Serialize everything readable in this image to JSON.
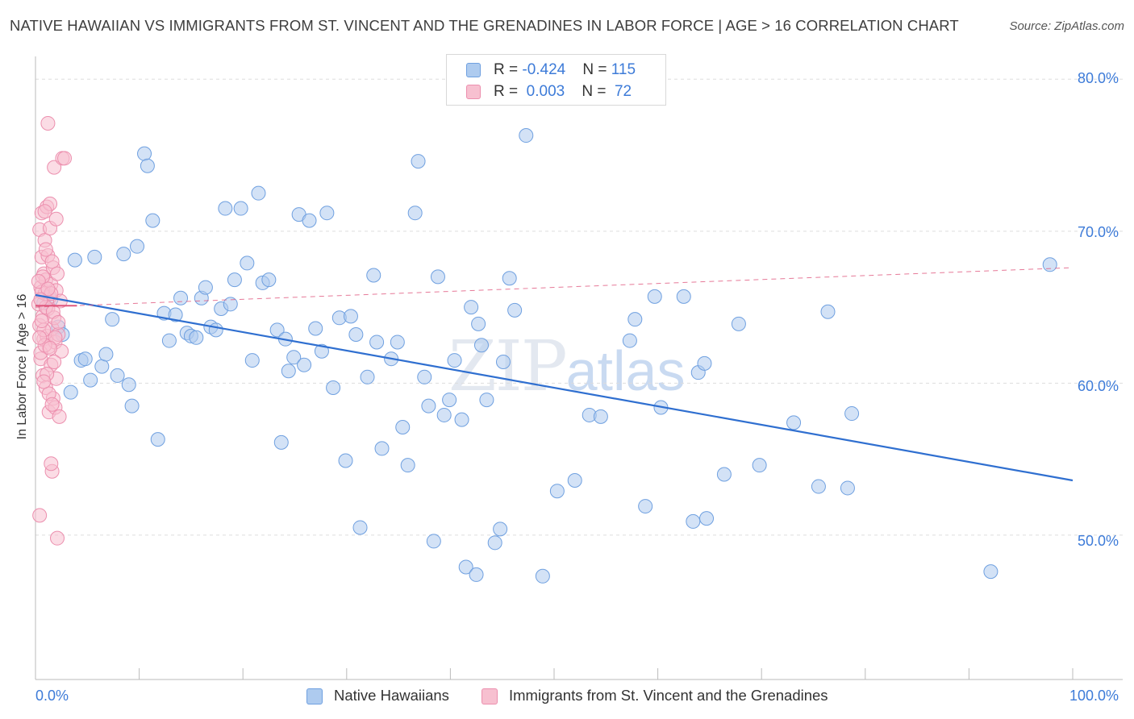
{
  "title": "NATIVE HAWAIIAN VS IMMIGRANTS FROM ST. VINCENT AND THE GRENADINES IN LABOR FORCE | AGE > 16 CORRELATION CHART",
  "source": "Source: ZipAtlas.com",
  "watermark": {
    "zip": "ZIP",
    "atlas": "atlas"
  },
  "legend_top": {
    "rows": [
      {
        "r_label": "R = ",
        "r_value": "-0.424",
        "n_label": "N = ",
        "n_value": "115"
      },
      {
        "r_label": "R = ",
        "r_value": " 0.003",
        "n_label": "N = ",
        "n_value": " 72"
      }
    ]
  },
  "colors": {
    "blue_fill": "#aecbef",
    "blue_stroke": "#6fa0e0",
    "blue_line": "#2f6fd0",
    "pink_fill": "#f7c0d0",
    "pink_stroke": "#ec8fae",
    "pink_line": "#e0587e",
    "grid": "#dddddd",
    "tick_text": "#3d7bd8"
  },
  "chart_data": {
    "type": "scatter",
    "title": "NATIVE HAWAIIAN VS IMMIGRANTS FROM ST. VINCENT AND THE GRENADINES IN LABOR FORCE | AGE > 16 CORRELATION CHART",
    "xlabel": "",
    "ylabel": "In Labor Force | Age > 16",
    "xlim": [
      0,
      100
    ],
    "ylim": [
      40.5,
      81.5
    ],
    "x_tick_labels": [
      "0.0%",
      "100.0%"
    ],
    "y_ticks": [
      50,
      60,
      70,
      80
    ],
    "y_tick_labels": [
      "50.0%",
      "60.0%",
      "70.0%",
      "80.0%"
    ],
    "grid": true,
    "legend_placement": "bottom",
    "series": [
      {
        "name": "Native Hawaiians",
        "r": -0.424,
        "n": 115,
        "trend": {
          "x": [
            0,
            100
          ],
          "y": [
            65.8,
            53.6
          ]
        },
        "points": [
          [
            0.8,
            65.3
          ],
          [
            1.5,
            65.5
          ],
          [
            2.2,
            63.7
          ],
          [
            2.6,
            63.2
          ],
          [
            3.4,
            59.4
          ],
          [
            3.8,
            68.1
          ],
          [
            4.4,
            61.5
          ],
          [
            4.8,
            61.6
          ],
          [
            5.3,
            60.2
          ],
          [
            5.7,
            68.3
          ],
          [
            6.4,
            61.1
          ],
          [
            6.8,
            61.9
          ],
          [
            7.4,
            64.2
          ],
          [
            7.9,
            60.5
          ],
          [
            8.5,
            68.5
          ],
          [
            9.0,
            59.9
          ],
          [
            9.3,
            58.5
          ],
          [
            9.8,
            69.0
          ],
          [
            10.5,
            75.1
          ],
          [
            10.8,
            74.3
          ],
          [
            11.3,
            70.7
          ],
          [
            11.8,
            56.3
          ],
          [
            12.4,
            64.6
          ],
          [
            12.9,
            62.8
          ],
          [
            13.5,
            64.5
          ],
          [
            14.0,
            65.6
          ],
          [
            14.6,
            63.3
          ],
          [
            15.0,
            63.1
          ],
          [
            15.5,
            63.0
          ],
          [
            16.0,
            65.6
          ],
          [
            16.4,
            66.3
          ],
          [
            16.9,
            63.7
          ],
          [
            17.4,
            63.5
          ],
          [
            17.9,
            64.9
          ],
          [
            18.3,
            71.5
          ],
          [
            18.8,
            65.2
          ],
          [
            19.2,
            66.8
          ],
          [
            19.8,
            71.5
          ],
          [
            20.4,
            67.9
          ],
          [
            20.9,
            61.5
          ],
          [
            21.5,
            72.5
          ],
          [
            21.9,
            66.6
          ],
          [
            22.5,
            66.8
          ],
          [
            23.3,
            63.5
          ],
          [
            23.7,
            56.1
          ],
          [
            24.1,
            62.9
          ],
          [
            24.4,
            60.8
          ],
          [
            24.9,
            61.7
          ],
          [
            25.4,
            71.1
          ],
          [
            25.9,
            61.2
          ],
          [
            26.4,
            70.7
          ],
          [
            27.0,
            63.6
          ],
          [
            27.6,
            62.1
          ],
          [
            28.1,
            71.2
          ],
          [
            28.7,
            59.7
          ],
          [
            29.3,
            64.3
          ],
          [
            29.9,
            54.9
          ],
          [
            30.4,
            64.4
          ],
          [
            30.9,
            63.2
          ],
          [
            31.3,
            50.5
          ],
          [
            32.0,
            60.4
          ],
          [
            32.6,
            67.1
          ],
          [
            32.9,
            62.7
          ],
          [
            33.4,
            55.7
          ],
          [
            34.3,
            61.6
          ],
          [
            34.9,
            62.7
          ],
          [
            35.4,
            57.1
          ],
          [
            35.9,
            54.6
          ],
          [
            36.6,
            71.2
          ],
          [
            36.9,
            74.6
          ],
          [
            37.5,
            60.4
          ],
          [
            37.9,
            58.5
          ],
          [
            38.4,
            49.6
          ],
          [
            38.8,
            67.0
          ],
          [
            39.4,
            57.9
          ],
          [
            39.9,
            58.9
          ],
          [
            40.4,
            61.5
          ],
          [
            41.1,
            57.6
          ],
          [
            41.5,
            47.9
          ],
          [
            42.0,
            65.0
          ],
          [
            42.5,
            47.4
          ],
          [
            42.7,
            63.9
          ],
          [
            43.0,
            62.5
          ],
          [
            43.5,
            58.9
          ],
          [
            44.3,
            49.5
          ],
          [
            44.8,
            50.4
          ],
          [
            45.1,
            61.4
          ],
          [
            45.7,
            66.9
          ],
          [
            46.2,
            64.8
          ],
          [
            47.3,
            76.3
          ],
          [
            48.9,
            47.3
          ],
          [
            50.3,
            52.9
          ],
          [
            52.0,
            53.6
          ],
          [
            53.4,
            57.9
          ],
          [
            54.5,
            57.8
          ],
          [
            57.3,
            62.8
          ],
          [
            57.8,
            64.2
          ],
          [
            58.8,
            51.9
          ],
          [
            59.7,
            65.7
          ],
          [
            60.3,
            58.4
          ],
          [
            62.5,
            65.7
          ],
          [
            63.4,
            50.9
          ],
          [
            63.9,
            60.7
          ],
          [
            64.5,
            61.3
          ],
          [
            64.7,
            51.1
          ],
          [
            66.4,
            54.0
          ],
          [
            67.8,
            63.9
          ],
          [
            69.8,
            54.6
          ],
          [
            73.1,
            57.4
          ],
          [
            75.5,
            53.2
          ],
          [
            78.3,
            53.1
          ],
          [
            78.7,
            58.0
          ],
          [
            92.1,
            47.6
          ],
          [
            97.8,
            67.8
          ],
          [
            76.4,
            64.7
          ]
        ]
      },
      {
        "name": "Immigrants from St. Vincent and the Grenadines",
        "r": 0.003,
        "n": 72,
        "trend": {
          "x": [
            0,
            100
          ],
          "y": [
            65.0,
            67.6
          ]
        },
        "points": [
          [
            0.3,
            65.2
          ],
          [
            0.4,
            70.1
          ],
          [
            0.4,
            63.8
          ],
          [
            0.5,
            61.6
          ],
          [
            0.5,
            66.3
          ],
          [
            0.6,
            68.3
          ],
          [
            0.6,
            71.2
          ],
          [
            0.7,
            60.5
          ],
          [
            0.7,
            64.4
          ],
          [
            0.8,
            67.2
          ],
          [
            0.8,
            62.9
          ],
          [
            0.9,
            65.9
          ],
          [
            0.9,
            69.4
          ],
          [
            1.0,
            59.7
          ],
          [
            1.0,
            66.8
          ],
          [
            1.1,
            63.1
          ],
          [
            1.1,
            71.6
          ],
          [
            1.2,
            64.9
          ],
          [
            1.2,
            68.4
          ],
          [
            1.3,
            62.4
          ],
          [
            1.3,
            58.1
          ],
          [
            1.4,
            65.7
          ],
          [
            1.4,
            70.2
          ],
          [
            1.5,
            61.2
          ],
          [
            1.5,
            66.5
          ],
          [
            1.6,
            63.6
          ],
          [
            1.6,
            54.2
          ],
          [
            1.7,
            59.0
          ],
          [
            1.7,
            67.6
          ],
          [
            1.8,
            64.3
          ],
          [
            1.8,
            74.2
          ],
          [
            1.9,
            62.7
          ],
          [
            1.9,
            58.4
          ],
          [
            2.0,
            66.1
          ],
          [
            2.0,
            60.3
          ],
          [
            2.1,
            49.8
          ],
          [
            2.2,
            63.2
          ],
          [
            2.3,
            57.8
          ],
          [
            2.4,
            65.4
          ],
          [
            2.5,
            62.1
          ],
          [
            2.6,
            74.8
          ],
          [
            2.8,
            74.8
          ],
          [
            0.4,
            51.3
          ],
          [
            1.2,
            77.1
          ],
          [
            1.4,
            71.8
          ],
          [
            1.5,
            54.7
          ],
          [
            0.9,
            71.3
          ],
          [
            1.0,
            65.0
          ],
          [
            0.6,
            66.0
          ],
          [
            0.8,
            63.5
          ],
          [
            1.6,
            68.0
          ],
          [
            1.9,
            63.0
          ],
          [
            0.5,
            62.0
          ],
          [
            1.3,
            59.3
          ],
          [
            1.1,
            60.6
          ],
          [
            0.7,
            67.0
          ],
          [
            1.7,
            64.7
          ],
          [
            0.3,
            66.7
          ],
          [
            2.1,
            67.2
          ],
          [
            0.9,
            62.5
          ],
          [
            1.5,
            65.9
          ],
          [
            1.8,
            61.4
          ],
          [
            0.6,
            64.1
          ],
          [
            1.2,
            66.2
          ],
          [
            2.0,
            70.8
          ],
          [
            0.4,
            63.0
          ],
          [
            1.0,
            68.8
          ],
          [
            1.4,
            62.3
          ],
          [
            0.8,
            60.1
          ],
          [
            1.6,
            58.6
          ],
          [
            2.2,
            64.0
          ],
          [
            0.5,
            65.5
          ]
        ]
      }
    ]
  }
}
